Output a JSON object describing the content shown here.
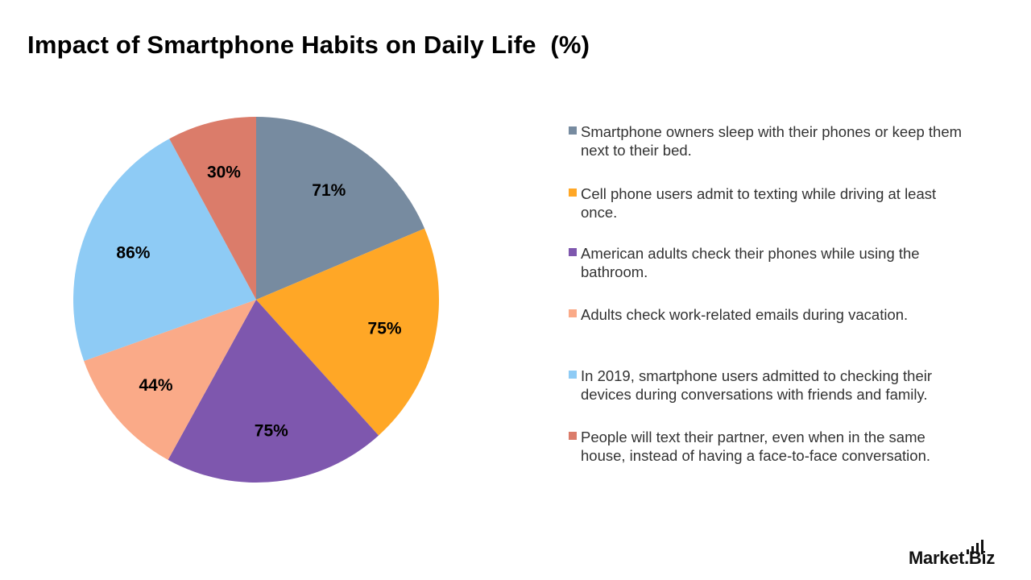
{
  "title": "Impact of Smartphone Habits on Daily Life  (%)",
  "chart_data": {
    "type": "pie",
    "slices": [
      {
        "label": "Smartphone owners sleep with their phones or keep them next to their bed.",
        "value": 71,
        "display": "71%",
        "color": "#778BA0"
      },
      {
        "label": "Cell phone users admit to texting while driving at least once.",
        "value": 75,
        "display": "75%",
        "color": "#FFA726"
      },
      {
        "label": "American adults check their phones while using the bathroom.",
        "value": 75,
        "display": "75%",
        "color": "#7E57AE"
      },
      {
        "label": "Adults check work-related emails during vacation.",
        "value": 44,
        "display": "44%",
        "color": "#FAAA88"
      },
      {
        "label": "In 2019, smartphone users admitted to checking their devices during conversations with friends and family.",
        "value": 86,
        "display": "86%",
        "color": "#8ECBF5"
      },
      {
        "label": "People will text their partner, even when in the same house, instead of having a face-to-face conversation.",
        "value": 30,
        "display": "30%",
        "color": "#DB7C6A"
      }
    ],
    "legend_position": "right",
    "start_angle": "top, clockwise"
  },
  "logo": {
    "text": "Market.Biz",
    "icon": "bar-chart-icon"
  }
}
